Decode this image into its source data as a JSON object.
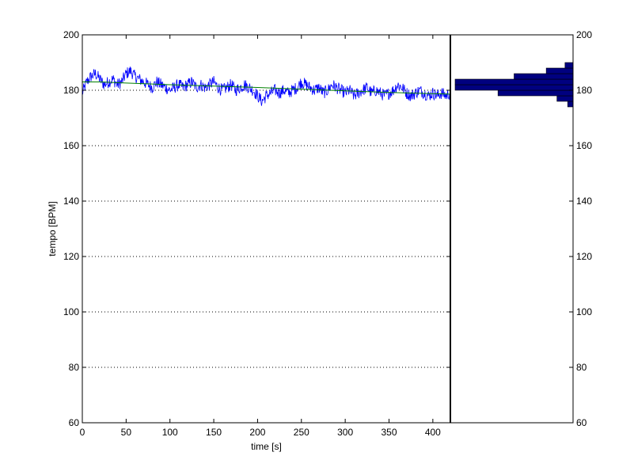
{
  "chart_data": [
    {
      "type": "line",
      "panel": "main",
      "xlabel": "time [s]",
      "ylabel": "tempo [BPM]",
      "xlim": [
        0,
        420
      ],
      "ylim": [
        60,
        200
      ],
      "x_ticks": [
        0,
        50,
        100,
        150,
        200,
        250,
        300,
        350,
        400
      ],
      "y_ticks": [
        60,
        80,
        100,
        120,
        140,
        160,
        180,
        200
      ],
      "grid": "horizontal dotted",
      "series": [
        {
          "style": "noisy",
          "color": "#0000ff",
          "x": [
            0,
            5,
            10,
            15,
            20,
            25,
            30,
            35,
            40,
            45,
            50,
            55,
            60,
            65,
            70,
            75,
            80,
            85,
            90,
            95,
            100,
            105,
            110,
            115,
            120,
            125,
            130,
            135,
            140,
            145,
            150,
            155,
            160,
            165,
            170,
            175,
            180,
            185,
            190,
            195,
            200,
            205,
            210,
            215,
            220,
            225,
            230,
            235,
            240,
            245,
            250,
            255,
            260,
            265,
            270,
            275,
            280,
            285,
            290,
            295,
            300,
            305,
            310,
            315,
            320,
            325,
            330,
            335,
            340,
            345,
            350,
            355,
            360,
            365,
            370,
            375,
            380,
            385,
            390,
            395,
            400,
            405,
            410,
            415,
            420
          ],
          "y": [
            179,
            183,
            185,
            186,
            184,
            182,
            183,
            184,
            182,
            183,
            186,
            187,
            185,
            184,
            183,
            182,
            181,
            183,
            182,
            181,
            180,
            181,
            182,
            181,
            182,
            183,
            181,
            182,
            181,
            182,
            183,
            181,
            180,
            181,
            182,
            180,
            181,
            182,
            181,
            180,
            178,
            176,
            178,
            179,
            180,
            179,
            180,
            179,
            180,
            181,
            183,
            182,
            181,
            180,
            181,
            179,
            180,
            182,
            181,
            180,
            179,
            180,
            178,
            179,
            180,
            181,
            179,
            180,
            179,
            178,
            179,
            180,
            182,
            181,
            179,
            178,
            179,
            180,
            179,
            178,
            179,
            178,
            179,
            178,
            179
          ]
        },
        {
          "style": "smooth",
          "color": "#008000",
          "x": [
            0,
            20,
            50,
            100,
            150,
            200,
            250,
            300,
            350,
            420
          ],
          "y": [
            183,
            183,
            182.6,
            182,
            181.5,
            181,
            180.4,
            179.8,
            179.2,
            178.6
          ]
        }
      ]
    },
    {
      "type": "bar",
      "panel": "histogram",
      "orientation": "horizontal",
      "color": "#000080",
      "ylim": [
        60,
        200
      ],
      "y_ticks": [
        60,
        80,
        100,
        120,
        140,
        160,
        180,
        200
      ],
      "bins": [
        174,
        176,
        178,
        180,
        182,
        184,
        186,
        188,
        190
      ],
      "counts": [
        2,
        6,
        28,
        44,
        44,
        22,
        10,
        3,
        1
      ]
    }
  ]
}
